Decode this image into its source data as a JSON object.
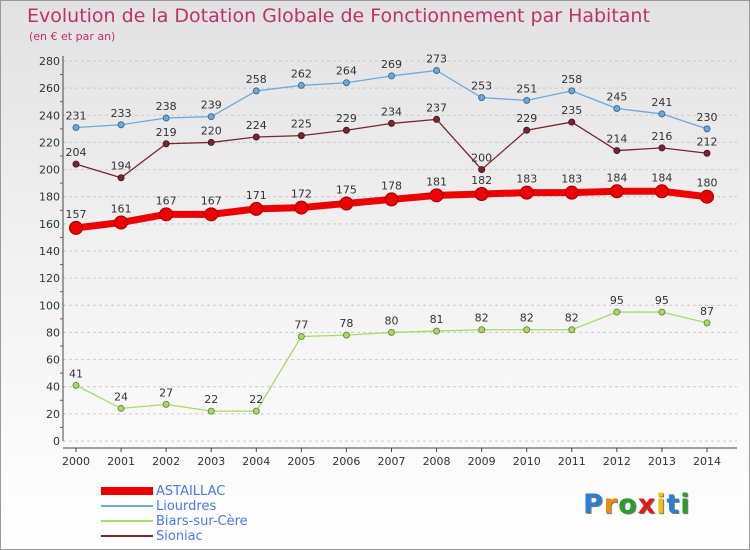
{
  "chart_data": {
    "type": "line",
    "title": "Evolution de la Dotation Globale de Fonctionnement par Habitant",
    "subtitle": "(en € et par an)",
    "xlabel": "",
    "ylabel": "",
    "ylim": [
      0,
      280
    ],
    "yticks": [
      0,
      20,
      40,
      60,
      80,
      100,
      120,
      140,
      160,
      180,
      200,
      220,
      240,
      260,
      280
    ],
    "grid": true,
    "categories": [
      "2000",
      "2001",
      "2002",
      "2003",
      "2004",
      "2005",
      "2006",
      "2007",
      "2008",
      "2009",
      "2010",
      "2011",
      "2012",
      "2013",
      "2014"
    ],
    "series": [
      {
        "name": "ASTAILLAC",
        "color": "#ee0000",
        "values": [
          157,
          161,
          167,
          167,
          171,
          172,
          175,
          178,
          181,
          182,
          183,
          183,
          184,
          184,
          180
        ]
      },
      {
        "name": "Liourdres",
        "color": "#6aa8de",
        "values": [
          231,
          233,
          238,
          239,
          258,
          262,
          264,
          269,
          273,
          253,
          251,
          258,
          245,
          241,
          230
        ]
      },
      {
        "name": "Biars-sur-Cère",
        "color": "#a4dc64",
        "values": [
          41,
          24,
          27,
          22,
          22,
          77,
          78,
          80,
          81,
          82,
          82,
          82,
          95,
          95,
          87
        ]
      },
      {
        "name": "Sioniac",
        "color": "#7a2530",
        "values": [
          204,
          194,
          219,
          220,
          224,
          225,
          229,
          234,
          237,
          200,
          229,
          235,
          214,
          216,
          212
        ]
      }
    ]
  },
  "logo": {
    "letters": [
      "P",
      "r",
      "o",
      "x",
      "i",
      "t",
      "i"
    ],
    "colors": [
      "#2a7fd0",
      "#f08a10",
      "#2aa02a",
      "#e01818",
      "#f0c010",
      "#2a7fd0",
      "#2aa02a"
    ]
  }
}
